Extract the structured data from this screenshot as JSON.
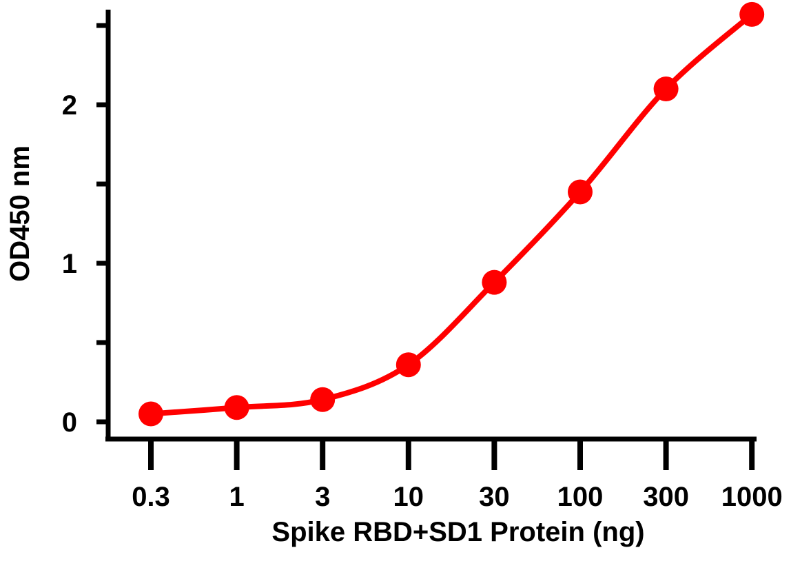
{
  "chart_data": {
    "type": "line",
    "title": "",
    "xlabel": "Spike RBD+SD1 Protein (ng)",
    "ylabel": "OD450 nm",
    "x": [
      0.3,
      1,
      3,
      10,
      30,
      100,
      300,
      1000
    ],
    "x_tick_labels": [
      "0.3",
      "1",
      "3",
      "10",
      "30",
      "100",
      "300",
      "1000"
    ],
    "x_scale": "log",
    "y_ticks": [
      0,
      1,
      2
    ],
    "y_minor_ticks": [
      0.5,
      1.5,
      2.5
    ],
    "ylim": [
      0,
      2.6
    ],
    "grid": false,
    "series": [
      {
        "values": [
          0.05,
          0.09,
          0.14,
          0.36,
          0.88,
          1.45,
          2.1,
          2.57
        ],
        "color": "#ff0000",
        "markers": "circle",
        "fit_line": true
      }
    ]
  }
}
